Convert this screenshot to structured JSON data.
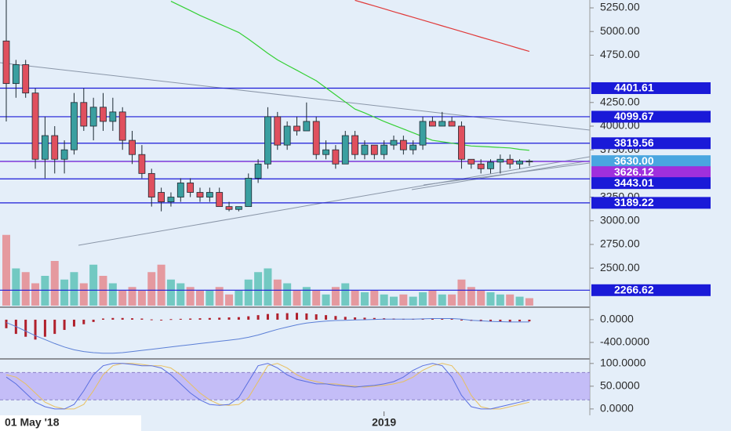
{
  "chart_data": [
    {
      "type": "candlestick",
      "x": [
        "01 May '18",
        null,
        null,
        null,
        null,
        null,
        null,
        null,
        null,
        null,
        null,
        null,
        null,
        null,
        null,
        null,
        null,
        null,
        null,
        null,
        null,
        null,
        null,
        null,
        null,
        null,
        null,
        null,
        null,
        null,
        null,
        null,
        null,
        null,
        null,
        null,
        null,
        null,
        null,
        "2019",
        null,
        null,
        null,
        null,
        null,
        null,
        null,
        null,
        null,
        null,
        null,
        null,
        null,
        null,
        null
      ],
      "ohlc": [
        [
          4900,
          5400,
          4050,
          4450
        ],
        [
          4450,
          4700,
          4300,
          4650
        ],
        [
          4650,
          4700,
          4300,
          4350
        ],
        [
          4350,
          4400,
          3550,
          3650
        ],
        [
          3650,
          4100,
          3450,
          3900
        ],
        [
          3900,
          4000,
          3500,
          3650
        ],
        [
          3650,
          3850,
          3500,
          3750
        ],
        [
          3750,
          4350,
          3700,
          4250
        ],
        [
          4250,
          4400,
          3950,
          4000
        ],
        [
          4000,
          4300,
          3850,
          4200
        ],
        [
          4200,
          4350,
          3950,
          4050
        ],
        [
          4050,
          4300,
          3950,
          4150
        ],
        [
          4150,
          4200,
          3750,
          3850
        ],
        [
          3850,
          3950,
          3600,
          3700
        ],
        [
          3700,
          3800,
          3450,
          3500
        ],
        [
          3500,
          3550,
          3150,
          3250
        ],
        [
          3300,
          3350,
          3100,
          3200
        ],
        [
          3200,
          3300,
          3150,
          3250
        ],
        [
          3250,
          3450,
          3200,
          3400
        ],
        [
          3400,
          3450,
          3250,
          3300
        ],
        [
          3300,
          3350,
          3200,
          3250
        ],
        [
          3250,
          3350,
          3200,
          3300
        ],
        [
          3300,
          3350,
          3150,
          3150
        ],
        [
          3150,
          3200,
          3100,
          3120
        ],
        [
          3120,
          3150,
          3100,
          3150
        ],
        [
          3150,
          3500,
          3150,
          3450
        ],
        [
          3450,
          3650,
          3400,
          3600
        ],
        [
          3600,
          4200,
          3550,
          4100
        ],
        [
          4100,
          4150,
          3750,
          3800
        ],
        [
          3800,
          4050,
          3750,
          4000
        ],
        [
          4000,
          4100,
          3900,
          3950
        ],
        [
          3950,
          4250,
          3950,
          4050
        ],
        [
          4050,
          4100,
          3650,
          3700
        ],
        [
          3700,
          3850,
          3650,
          3750
        ],
        [
          3750,
          3800,
          3550,
          3600
        ],
        [
          3600,
          3950,
          3600,
          3900
        ],
        [
          3900,
          3950,
          3650,
          3700
        ],
        [
          3700,
          3850,
          3650,
          3800
        ],
        [
          3800,
          3800,
          3650,
          3700
        ],
        [
          3700,
          3850,
          3650,
          3800
        ],
        [
          3800,
          3900,
          3750,
          3850
        ],
        [
          3850,
          3900,
          3700,
          3750
        ],
        [
          3750,
          3850,
          3700,
          3800
        ],
        [
          3800,
          4100,
          3750,
          4050
        ],
        [
          4050,
          4100,
          4000,
          4000
        ],
        [
          4000,
          4150,
          4000,
          4050
        ],
        [
          4050,
          4100,
          4000,
          4000
        ],
        [
          4000,
          4050,
          3550,
          3650
        ],
        [
          3650,
          3650,
          3550,
          3600
        ],
        [
          3600,
          3650,
          3500,
          3550
        ],
        [
          3550,
          3650,
          3500,
          3620
        ],
        [
          3620,
          3700,
          3500,
          3650
        ],
        [
          3650,
          3700,
          3550,
          3600
        ],
        [
          3600,
          3650,
          3550,
          3630
        ],
        [
          3630,
          3650,
          3580,
          3626
        ]
      ],
      "up_color": "#3a9fa0",
      "down_color": "#e0505e",
      "ylim": [
        2087,
        5333
      ],
      "yticks": [
        {
          "value": 5250,
          "label": "5250.00"
        },
        {
          "value": 5000,
          "label": "5000.00"
        },
        {
          "value": 4750,
          "label": "4750.00"
        },
        {
          "value": 4250,
          "label": "4250.00"
        },
        {
          "value": 4000,
          "label": "4000.00"
        },
        {
          "value": 3750,
          "label": "3750.00"
        },
        {
          "value": 3250,
          "label": "3250.00"
        },
        {
          "value": 3000,
          "label": "3000.00"
        },
        {
          "value": 2750,
          "label": "2750.00"
        },
        {
          "value": 2500,
          "label": "2500.00"
        }
      ],
      "ma": [
        {
          "color": "#35d035",
          "values": [
            null,
            null,
            null,
            null,
            null,
            null,
            null,
            null,
            null,
            null,
            null,
            null,
            null,
            null,
            null,
            null,
            null,
            5320,
            5270,
            5220,
            5170,
            5125,
            5080,
            5035,
            4990,
            4920,
            4845,
            4770,
            4700,
            4645,
            4590,
            4535,
            4480,
            4405,
            4330,
            4255,
            4180,
            4140,
            4095,
            4050,
            4010,
            3970,
            3930,
            3890,
            3850,
            3835,
            3820,
            3805,
            3790,
            3785,
            3780,
            3775,
            3770,
            3755,
            3745
          ]
        },
        {
          "color": "#e03a3a",
          "values": [
            null,
            null,
            null,
            null,
            null,
            null,
            null,
            null,
            null,
            null,
            null,
            null,
            null,
            null,
            null,
            null,
            null,
            null,
            null,
            null,
            null,
            null,
            null,
            null,
            null,
            null,
            null,
            null,
            null,
            null,
            null,
            null,
            null,
            null,
            null,
            null,
            5330,
            5300,
            5270,
            5240,
            5210,
            5180,
            5150,
            5120,
            5090,
            5060,
            5030,
            5000,
            4970,
            4940,
            4910,
            4880,
            4850,
            4820,
            4790
          ]
        }
      ],
      "levels": [
        {
          "value": 4401.61,
          "color": "#1a1ad8"
        },
        {
          "value": 4099.67,
          "color": "#1a1ad8"
        },
        {
          "value": 3819.56,
          "color": "#1a1ad8"
        },
        {
          "value": 3630,
          "label": "3630.00",
          "color": "#4aa6e0"
        },
        {
          "value": 3626.12,
          "color": "#a030dc"
        },
        {
          "value": 3443.01,
          "color": "#1a1ad8"
        },
        {
          "value": 3189.22,
          "color": "#1a1ad8"
        },
        {
          "value": 2266.62,
          "color": "#1a1ad8"
        }
      ],
      "volume": [
        95,
        50,
        45,
        30,
        40,
        60,
        35,
        45,
        30,
        55,
        40,
        30,
        20,
        25,
        20,
        45,
        55,
        35,
        30,
        25,
        20,
        20,
        25,
        15,
        20,
        35,
        45,
        50,
        35,
        30,
        20,
        25,
        20,
        15,
        25,
        30,
        20,
        18,
        20,
        15,
        12,
        15,
        12,
        18,
        20,
        15,
        15,
        35,
        25,
        20,
        18,
        15,
        15,
        12,
        10
      ],
      "volume_ylim": [
        0,
        100
      ],
      "volume_up_color": "#5ec2b8",
      "volume_down_color": "#e58a8f"
    },
    {
      "type": "macd",
      "ylim": [
        -690,
        220
      ],
      "yticks": [
        {
          "value": 0,
          "label": "0.0000"
        },
        {
          "value": -400,
          "label": "-400.0000"
        }
      ],
      "histogram": [
        -150,
        -250,
        -300,
        -350,
        -300,
        -250,
        -180,
        -120,
        -80,
        -40,
        20,
        30,
        30,
        25,
        20,
        5,
        -5,
        10,
        15,
        20,
        25,
        30,
        35,
        40,
        45,
        60,
        80,
        100,
        110,
        115,
        120,
        110,
        95,
        80,
        65,
        50,
        40,
        35,
        30,
        25,
        20,
        15,
        15,
        20,
        25,
        25,
        20,
        -5,
        -20,
        -30,
        -35,
        -35,
        -35,
        -30,
        -30
      ],
      "histogram_color": "#b0202c",
      "line": [
        -50,
        -120,
        -200,
        -280,
        -350,
        -420,
        -480,
        -530,
        -560,
        -580,
        -590,
        -590,
        -580,
        -560,
        -540,
        -520,
        -500,
        -480,
        -460,
        -440,
        -420,
        -400,
        -380,
        -360,
        -340,
        -310,
        -270,
        -220,
        -170,
        -130,
        -90,
        -60,
        -40,
        -25,
        -15,
        -10,
        -5,
        0,
        5,
        10,
        10,
        10,
        10,
        15,
        20,
        20,
        20,
        10,
        -10,
        -20,
        -30,
        -35,
        -40,
        -40,
        -40
      ],
      "line_color": "#5b7fd6"
    },
    {
      "type": "stoch",
      "ylim": [
        -14,
        110
      ],
      "yticks": [
        {
          "value": 100,
          "label": "100.0000"
        },
        {
          "value": 50,
          "label": "50.0000"
        },
        {
          "value": 0,
          "label": "0.0000"
        }
      ],
      "band": [
        20,
        80
      ],
      "band_color": "#b7a8f6",
      "k": [
        70,
        55,
        35,
        15,
        5,
        0,
        0,
        10,
        40,
        75,
        95,
        100,
        100,
        98,
        95,
        95,
        90,
        75,
        55,
        35,
        20,
        10,
        8,
        10,
        25,
        60,
        95,
        100,
        90,
        75,
        65,
        60,
        55,
        55,
        52,
        50,
        48,
        50,
        52,
        55,
        60,
        70,
        85,
        95,
        100,
        95,
        70,
        30,
        5,
        0,
        0,
        5,
        10,
        15,
        20
      ],
      "d": [
        75,
        70,
        55,
        35,
        15,
        5,
        0,
        0,
        10,
        40,
        75,
        95,
        100,
        100,
        98,
        95,
        95,
        90,
        75,
        55,
        35,
        20,
        10,
        8,
        10,
        25,
        60,
        95,
        100,
        90,
        75,
        65,
        60,
        55,
        55,
        52,
        50,
        48,
        50,
        52,
        55,
        60,
        70,
        85,
        95,
        100,
        95,
        70,
        30,
        5,
        0,
        0,
        5,
        10,
        15
      ],
      "k_color": "#5a6fe0",
      "d_color": "#e8c060"
    }
  ]
}
